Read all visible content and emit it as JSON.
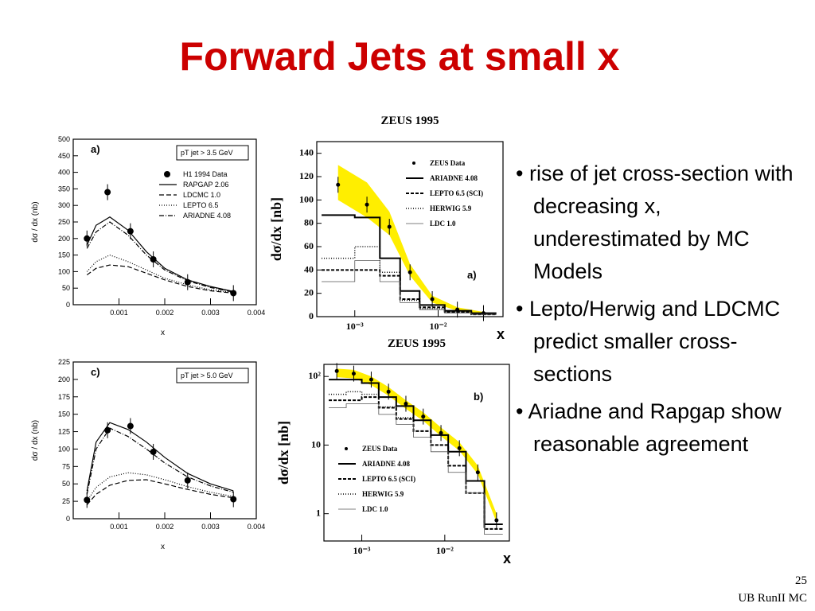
{
  "title": "Forward Jets at small x",
  "bullets": [
    "rise of jet cross-section  with decreasing x, underestimated by MC Models",
    "Lepto/Herwig and LDCMC predict smaller cross-sections",
    "Ariadne and Rapgap show reasonable agreement"
  ],
  "footer": {
    "page": "25",
    "label": "UB RunII MC"
  },
  "chart_data": [
    {
      "type": "line",
      "panel": "a)",
      "annotation": "pT jet > 3.5 GeV",
      "ylabel": "dσ / dx  (nb)",
      "xlabel": "x",
      "xlim": [
        0,
        0.004
      ],
      "xticks": [
        0.001,
        0.002,
        0.003,
        0.004
      ],
      "ylim": [
        0,
        500
      ],
      "yticks": [
        0,
        50,
        100,
        150,
        200,
        250,
        300,
        350,
        400,
        450,
        500
      ],
      "series": [
        {
          "name": "H1 1994 Data",
          "kind": "points",
          "color": "#000000",
          "x": [
            0.0003,
            0.00075,
            0.00125,
            0.00175,
            0.0025,
            0.0035
          ],
          "values": [
            200,
            340,
            222,
            137,
            68,
            35
          ]
        },
        {
          "name": "RAPGAP 2.06",
          "kind": "line",
          "dash": "",
          "color": "#000000",
          "x": [
            0.0003,
            0.0005,
            0.0008,
            0.0012,
            0.0016,
            0.002,
            0.0025,
            0.003,
            0.0035
          ],
          "values": [
            180,
            240,
            265,
            225,
            160,
            110,
            75,
            55,
            40
          ]
        },
        {
          "name": "LDCMC 1.0",
          "kind": "line",
          "dash": "6 3",
          "color": "#000000",
          "x": [
            0.0003,
            0.0005,
            0.0008,
            0.0012,
            0.0016,
            0.002,
            0.0025,
            0.003,
            0.0035
          ],
          "values": [
            90,
            110,
            120,
            115,
            95,
            75,
            55,
            42,
            35
          ]
        },
        {
          "name": "LEPTO 6.5",
          "kind": "line",
          "dash": "1 2",
          "color": "#000000",
          "x": [
            0.0003,
            0.0005,
            0.0008,
            0.0012,
            0.0016,
            0.002,
            0.0025,
            0.003,
            0.0035
          ],
          "values": [
            100,
            130,
            150,
            130,
            105,
            80,
            60,
            45,
            37
          ]
        },
        {
          "name": "ARIADNE 4.08",
          "kind": "line",
          "dash": "6 2 1 2",
          "color": "#000000",
          "x": [
            0.0003,
            0.0005,
            0.0008,
            0.0012,
            0.0016,
            0.002,
            0.0025,
            0.003,
            0.0035
          ],
          "values": [
            170,
            220,
            250,
            210,
            150,
            105,
            72,
            52,
            38
          ]
        }
      ]
    },
    {
      "type": "line",
      "panel": "c)",
      "annotation": "pT jet > 5.0 GeV",
      "ylabel": "dσ / dx  (nb)",
      "xlabel": "x",
      "xlim": [
        0,
        0.004
      ],
      "xticks": [
        0.001,
        0.002,
        0.003,
        0.004
      ],
      "ylim": [
        0,
        225
      ],
      "yticks": [
        0,
        25,
        50,
        75,
        100,
        125,
        150,
        175,
        200,
        225
      ],
      "series": [
        {
          "name": "H1 1994 Data",
          "kind": "points",
          "color": "#000000",
          "x": [
            0.0003,
            0.00075,
            0.00125,
            0.00175,
            0.0025,
            0.0035
          ],
          "values": [
            27,
            127,
            133,
            96,
            55,
            28
          ]
        },
        {
          "name": "RAPGAP 2.06",
          "kind": "line",
          "dash": "",
          "color": "#000000",
          "x": [
            0.0003,
            0.0005,
            0.0008,
            0.0012,
            0.0016,
            0.002,
            0.0025,
            0.003,
            0.0035
          ],
          "values": [
            40,
            110,
            138,
            128,
            110,
            88,
            65,
            50,
            40
          ]
        },
        {
          "name": "LDCMC 1.0",
          "kind": "line",
          "dash": "6 3",
          "color": "#000000",
          "x": [
            0.0003,
            0.0005,
            0.0008,
            0.0012,
            0.0016,
            0.002,
            0.0025,
            0.003,
            0.0035
          ],
          "values": [
            20,
            35,
            48,
            55,
            56,
            50,
            42,
            35,
            30
          ]
        },
        {
          "name": "LEPTO 6.5",
          "kind": "line",
          "dash": "1 2",
          "color": "#000000",
          "x": [
            0.0003,
            0.0005,
            0.0008,
            0.0012,
            0.0016,
            0.002,
            0.0025,
            0.003,
            0.0035
          ],
          "values": [
            25,
            45,
            60,
            66,
            63,
            56,
            46,
            38,
            32
          ]
        },
        {
          "name": "ARIADNE 4.08",
          "kind": "line",
          "dash": "6 2 1 2",
          "color": "#000000",
          "x": [
            0.0003,
            0.0005,
            0.0008,
            0.0012,
            0.0016,
            0.002,
            0.0025,
            0.003,
            0.0035
          ],
          "values": [
            35,
            100,
            130,
            118,
            100,
            80,
            60,
            47,
            38
          ]
        }
      ]
    },
    {
      "type": "line",
      "title": "ZEUS 1995",
      "panel": "a)",
      "ylabel": "dσ/dx [nb]",
      "xlabel": "x",
      "xlog": true,
      "xlim": [
        0.00035,
        0.06
      ],
      "xticks": [
        {
          "value": 0.001,
          "label": "10⁻³"
        },
        {
          "value": 0.01,
          "label": "10⁻²"
        }
      ],
      "ylim": [
        0,
        150
      ],
      "yticks": [
        0,
        20,
        40,
        60,
        80,
        100,
        120,
        140
      ],
      "series": [
        {
          "name": "ZEUS Data",
          "kind": "points",
          "color": "#000000",
          "x": [
            0.00063,
            0.0014,
            0.0026,
            0.0046,
            0.0085,
            0.017,
            0.035
          ],
          "values": [
            113,
            96,
            77,
            38,
            15,
            6,
            3
          ]
        },
        {
          "kind": "band",
          "color": "#ffee00",
          "x": [
            0.00063,
            0.0014,
            0.0026,
            0.0046,
            0.0085,
            0.017,
            0.035
          ],
          "values": [
            130,
            115,
            90,
            45,
            18,
            8,
            4
          ],
          "lower": [
            100,
            85,
            70,
            35,
            12,
            5,
            2
          ]
        },
        {
          "name": "ARIADNE 4.08",
          "kind": "step",
          "dash": "",
          "width": 2,
          "color": "#000000",
          "bins": [
            0.0004,
            0.001,
            0.002,
            0.0035,
            0.006,
            0.012,
            0.025,
            0.05
          ],
          "values": [
            87,
            85,
            50,
            22,
            10,
            5,
            3
          ]
        },
        {
          "name": "LEPTO 6.5 (SCI)",
          "kind": "step",
          "dash": "4 2",
          "width": 2,
          "color": "#000000",
          "bins": [
            0.0004,
            0.001,
            0.002,
            0.0035,
            0.006,
            0.012,
            0.025,
            0.05
          ],
          "values": [
            40,
            40,
            35,
            15,
            8,
            4,
            2
          ]
        },
        {
          "name": "HERWIG 5.9",
          "kind": "step",
          "dash": "1 2",
          "width": 1.5,
          "color": "#000000",
          "bins": [
            0.0004,
            0.001,
            0.002,
            0.0035,
            0.006,
            0.012,
            0.025,
            0.05
          ],
          "values": [
            50,
            60,
            38,
            14,
            7,
            4,
            2
          ]
        },
        {
          "name": "LDC 1.0",
          "kind": "step",
          "dash": "",
          "width": 0.8,
          "color": "#555555",
          "bins": [
            0.0004,
            0.001,
            0.002,
            0.0035,
            0.006,
            0.012,
            0.025,
            0.05
          ],
          "values": [
            30,
            48,
            30,
            12,
            6,
            3,
            2
          ]
        }
      ]
    },
    {
      "type": "line",
      "title": "ZEUS 1995",
      "panel": "b)",
      "ylabel": "dσ/dx [nb]",
      "xlabel": "x",
      "xlog": true,
      "ylog": true,
      "xlim": [
        0.00035,
        0.06
      ],
      "xticks": [
        {
          "value": 0.001,
          "label": "10⁻³"
        },
        {
          "value": 0.01,
          "label": "10⁻²"
        }
      ],
      "ylim": [
        0.4,
        150
      ],
      "yticks": [
        1,
        10,
        {
          "value": 100,
          "label": "10²"
        }
      ],
      "series": [
        {
          "name": "ZEUS Data",
          "kind": "points",
          "color": "#000000",
          "x": [
            0.0005,
            0.0008,
            0.0013,
            0.0021,
            0.0034,
            0.0055,
            0.009,
            0.015,
            0.025,
            0.042
          ],
          "values": [
            120,
            110,
            90,
            60,
            40,
            26,
            15,
            9,
            4,
            0.8
          ]
        },
        {
          "kind": "band",
          "color": "#ffee00",
          "x": [
            0.0005,
            0.0008,
            0.0013,
            0.0021,
            0.0034,
            0.0055,
            0.009,
            0.015,
            0.025,
            0.042
          ],
          "values": [
            130,
            125,
            100,
            70,
            45,
            30,
            18,
            11,
            5,
            1
          ]
        },
        {
          "name": "ARIADNE 4.08",
          "kind": "step",
          "dash": "",
          "width": 2,
          "color": "#000000",
          "bins": [
            0.0004,
            0.00065,
            0.001,
            0.0016,
            0.0026,
            0.0042,
            0.0068,
            0.011,
            0.018,
            0.03,
            0.05
          ],
          "values": [
            90,
            90,
            80,
            50,
            37,
            23,
            14,
            8,
            3,
            0.7
          ]
        },
        {
          "name": "LEPTO 6.5 (SCI)",
          "kind": "step",
          "dash": "4 2",
          "width": 2,
          "color": "#000000",
          "bins": [
            0.0004,
            0.00065,
            0.001,
            0.0016,
            0.0026,
            0.0042,
            0.0068,
            0.011,
            0.018,
            0.03,
            0.05
          ],
          "values": [
            45,
            45,
            50,
            35,
            24,
            16,
            10,
            5,
            2,
            0.6
          ]
        },
        {
          "name": "HERWIG 5.9",
          "kind": "step",
          "dash": "1 2",
          "width": 1.5,
          "color": "#000000",
          "bins": [
            0.0004,
            0.00065,
            0.001,
            0.0016,
            0.0026,
            0.0042,
            0.0068,
            0.011,
            0.018,
            0.03,
            0.05
          ],
          "values": [
            55,
            60,
            55,
            36,
            25,
            16,
            10,
            5,
            2,
            0.6
          ]
        },
        {
          "name": "LDC 1.0",
          "kind": "step",
          "dash": "",
          "width": 0.8,
          "color": "#555555",
          "bins": [
            0.0004,
            0.00065,
            0.001,
            0.0016,
            0.0026,
            0.0042,
            0.0068,
            0.011,
            0.018,
            0.03,
            0.05
          ],
          "values": [
            35,
            40,
            40,
            28,
            20,
            13,
            8,
            4,
            2,
            0.5
          ]
        }
      ]
    }
  ]
}
